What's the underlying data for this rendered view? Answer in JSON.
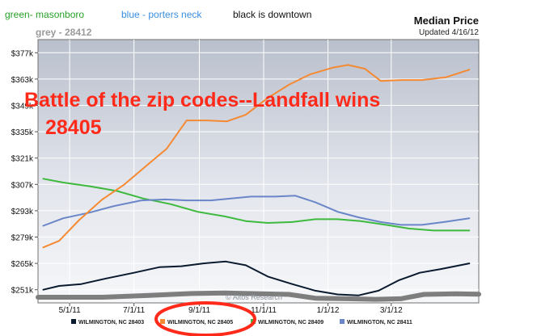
{
  "header": {
    "caption_green": "green- masonboro",
    "caption_blue": "blue - porters neck",
    "caption_black": "black is downtown",
    "caption_grey": "grey - 28412",
    "title": "Median Price",
    "updated": "Updated 4/16/12",
    "watermark": "© Altos Research"
  },
  "annotation": {
    "line1": "Battle of the zip codes--Landfall wins",
    "line2": "28405",
    "color": "#ff2a1a",
    "highlight_color": "#ff2a1a"
  },
  "chart_data": {
    "type": "line",
    "title": "Median Price",
    "subtitle": "Updated 4/16/12",
    "x_start": "2011-04-01",
    "x_end": "2012-05-23",
    "x_ticks": [
      {
        "date": "2011-05-01",
        "label": "5/1/11"
      },
      {
        "date": "2011-07-01",
        "label": "7/1/11"
      },
      {
        "date": "2011-09-01",
        "label": "9/1/11"
      },
      {
        "date": "2011-11-01",
        "label": "11/1/11"
      },
      {
        "date": "2012-01-01",
        "label": "1/1/12"
      },
      {
        "date": "2012-03-01",
        "label": "3/1/12"
      }
    ],
    "ylim": [
      244000,
      384000
    ],
    "y_ticks": [
      {
        "value": 251000,
        "label": "$251k"
      },
      {
        "value": 265000,
        "label": "$265k"
      },
      {
        "value": 279000,
        "label": "$279k"
      },
      {
        "value": 293000,
        "label": "$293k"
      },
      {
        "value": 307000,
        "label": "$307k"
      },
      {
        "value": 321000,
        "label": "$321k"
      },
      {
        "value": 335000,
        "label": "$335k"
      },
      {
        "value": 349000,
        "label": "$349k"
      },
      {
        "value": 363000,
        "label": "$363k"
      },
      {
        "value": 377000,
        "label": "$377k"
      }
    ],
    "grid": true,
    "legend_position": "bottom",
    "series": [
      {
        "name": "WILMINGTON, NC 28403",
        "color": "#0a1a2e",
        "points": [
          [
            "2011-04-06",
            251000
          ],
          [
            "2011-04-21",
            253000
          ],
          [
            "2011-05-12",
            254000
          ],
          [
            "2011-06-05",
            257000
          ],
          [
            "2011-07-01",
            260000
          ],
          [
            "2011-07-25",
            263000
          ],
          [
            "2011-08-15",
            263500
          ],
          [
            "2011-09-05",
            265000
          ],
          [
            "2011-09-26",
            266000
          ],
          [
            "2011-10-15",
            264000
          ],
          [
            "2011-11-05",
            258000
          ],
          [
            "2011-11-28",
            254000
          ],
          [
            "2011-12-20",
            250500
          ],
          [
            "2012-01-10",
            248500
          ],
          [
            "2012-01-30",
            248000
          ],
          [
            "2012-02-18",
            250500
          ],
          [
            "2012-03-08",
            256000
          ],
          [
            "2012-03-28",
            260000
          ],
          [
            "2012-04-17",
            262000
          ],
          [
            "2012-05-14",
            265000
          ]
        ]
      },
      {
        "name": "WILMINGTON, NC 28405",
        "color": "#f58a33",
        "points": [
          [
            "2011-04-06",
            273500
          ],
          [
            "2011-04-21",
            277000
          ],
          [
            "2011-05-10",
            288000
          ],
          [
            "2011-06-01",
            299000
          ],
          [
            "2011-06-22",
            307000
          ],
          [
            "2011-07-15",
            318000
          ],
          [
            "2011-08-01",
            326000
          ],
          [
            "2011-08-20",
            341000
          ],
          [
            "2011-09-08",
            341000
          ],
          [
            "2011-09-27",
            340500
          ],
          [
            "2011-10-15",
            344000
          ],
          [
            "2011-11-05",
            353000
          ],
          [
            "2011-11-25",
            360000
          ],
          [
            "2011-12-15",
            365500
          ],
          [
            "2012-01-05",
            369000
          ],
          [
            "2012-01-20",
            370500
          ],
          [
            "2012-02-05",
            368500
          ],
          [
            "2012-02-20",
            362000
          ],
          [
            "2012-03-10",
            362500
          ],
          [
            "2012-03-30",
            362500
          ],
          [
            "2012-04-22",
            364000
          ],
          [
            "2012-05-14",
            368000
          ]
        ]
      },
      {
        "name": "WILMINGTON, NC 28409",
        "color": "#3dba3d",
        "points": [
          [
            "2011-04-06",
            310000
          ],
          [
            "2011-04-25",
            308000
          ],
          [
            "2011-05-20",
            306000
          ],
          [
            "2011-06-15",
            303500
          ],
          [
            "2011-07-10",
            299500
          ],
          [
            "2011-08-05",
            296500
          ],
          [
            "2011-08-30",
            292500
          ],
          [
            "2011-09-25",
            290000
          ],
          [
            "2011-10-15",
            287500
          ],
          [
            "2011-11-05",
            286500
          ],
          [
            "2011-11-28",
            287000
          ],
          [
            "2011-12-20",
            288500
          ],
          [
            "2012-01-10",
            288500
          ],
          [
            "2012-02-01",
            287500
          ],
          [
            "2012-02-25",
            285500
          ],
          [
            "2012-03-18",
            283500
          ],
          [
            "2012-04-10",
            282500
          ],
          [
            "2012-05-14",
            282500
          ]
        ]
      },
      {
        "name": "WILMINGTON, NC 28411",
        "color": "#6a86c8",
        "points": [
          [
            "2011-04-06",
            285000
          ],
          [
            "2011-04-25",
            289000
          ],
          [
            "2011-05-20",
            292000
          ],
          [
            "2011-06-12",
            295500
          ],
          [
            "2011-07-08",
            298500
          ],
          [
            "2011-07-31",
            299000
          ],
          [
            "2011-08-20",
            298500
          ],
          [
            "2011-09-12",
            298500
          ],
          [
            "2011-10-01",
            299500
          ],
          [
            "2011-10-20",
            300500
          ],
          [
            "2011-11-12",
            300500
          ],
          [
            "2011-12-01",
            301000
          ],
          [
            "2011-12-20",
            297500
          ],
          [
            "2012-01-10",
            292500
          ],
          [
            "2012-01-30",
            289500
          ],
          [
            "2012-02-20",
            287000
          ],
          [
            "2012-03-10",
            285500
          ],
          [
            "2012-03-30",
            285500
          ],
          [
            "2012-04-20",
            287000
          ],
          [
            "2012-05-14",
            289000
          ]
        ]
      },
      {
        "name": "",
        "color": "#7e7e7e",
        "points": [
          [
            "2011-04-01",
            247000
          ],
          [
            "2011-06-01",
            247000
          ],
          [
            "2011-07-15",
            248000
          ],
          [
            "2011-08-25",
            249000
          ],
          [
            "2011-09-25",
            249300
          ],
          [
            "2011-10-25",
            248900
          ],
          [
            "2011-11-25",
            248500
          ],
          [
            "2011-12-20",
            246500
          ],
          [
            "2012-01-20",
            246200
          ],
          [
            "2012-02-15",
            245900
          ],
          [
            "2012-03-10",
            246200
          ],
          [
            "2012-04-01",
            248500
          ],
          [
            "2012-05-01",
            248800
          ],
          [
            "2012-05-23",
            248600
          ]
        ]
      }
    ]
  }
}
